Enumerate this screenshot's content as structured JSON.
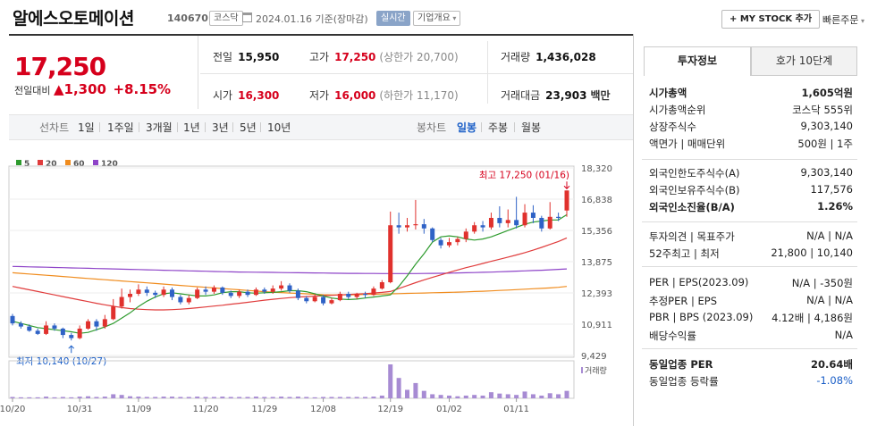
{
  "header": {
    "company_name": "알에스오토메이션",
    "code": "140670",
    "market_badge": "코스닥",
    "date_text": "2024.01.16 기준(장마감)",
    "realtime_badge": "실시간",
    "company_overview": "기업개요",
    "mystock_button": "+ MY STOCK 추가",
    "quick_order": "빠른주문"
  },
  "quote": {
    "price": "17,250",
    "change_label": "전일대비",
    "change_arrow": "▲",
    "change_value": "1,300",
    "change_percent": "+8.15%",
    "prev_close_label": "전일",
    "prev_close": "15,950",
    "high_label": "고가",
    "high": "17,250",
    "upper_limit": "(상한가 20,700)",
    "volume_label": "거래량",
    "volume": "1,436,028",
    "open_label": "시가",
    "open": "16,300",
    "low_label": "저가",
    "low": "16,000",
    "lower_limit": "(하한가 11,170)",
    "amount_label": "거래대금",
    "amount": "23,903",
    "amount_unit": "백만"
  },
  "periods": {
    "label": "선차트",
    "items": [
      "1일",
      "1주일",
      "3개월",
      "1년",
      "3년",
      "5년",
      "10년"
    ],
    "candle_label": "봉차트",
    "candle_items": [
      "일봉",
      "주봉",
      "월봉"
    ],
    "selected": "일봉"
  },
  "chart_data": {
    "type": "candlestick",
    "legend": [
      {
        "name": "5",
        "color": "#2e9b2e"
      },
      {
        "name": "20",
        "color": "#e03c3c"
      },
      {
        "name": "60",
        "color": "#f08c1e"
      },
      {
        "name": "120",
        "color": "#8e44c8"
      }
    ],
    "y_ticks": [
      "18,320",
      "16,838",
      "15,356",
      "13,875",
      "12,393",
      "10,911",
      "9,429"
    ],
    "ylim": [
      9429,
      18320
    ],
    "x_ticks": [
      "10/20",
      "10/31",
      "11/09",
      "11/20",
      "11/29",
      "12/08",
      "12/19",
      "01/02",
      "01/11"
    ],
    "high_annotation": "최고 17,250 (01/16)",
    "low_annotation": "최저 10,140 (10/27)",
    "volume_label": "거래량",
    "candles": [
      {
        "o": 11300,
        "c": 10950,
        "h": 11400,
        "l": 10850
      },
      {
        "o": 10950,
        "c": 10800,
        "h": 11050,
        "l": 10700
      },
      {
        "o": 10800,
        "c": 10600,
        "h": 10900,
        "l": 10550
      },
      {
        "o": 10600,
        "c": 10450,
        "h": 10700,
        "l": 10400
      },
      {
        "o": 10450,
        "c": 10850,
        "h": 11050,
        "l": 10400
      },
      {
        "o": 10850,
        "c": 10700,
        "h": 10950,
        "l": 10600
      },
      {
        "o": 10700,
        "c": 10400,
        "h": 10750,
        "l": 10250
      },
      {
        "o": 10400,
        "c": 10250,
        "h": 10500,
        "l": 10140
      },
      {
        "o": 10250,
        "c": 10700,
        "h": 10850,
        "l": 10200
      },
      {
        "o": 10700,
        "c": 11050,
        "h": 11150,
        "l": 10650
      },
      {
        "o": 11050,
        "c": 10800,
        "h": 11150,
        "l": 10600
      },
      {
        "o": 10800,
        "c": 11150,
        "h": 11350,
        "l": 10700
      },
      {
        "o": 11150,
        "c": 11750,
        "h": 12100,
        "l": 11100
      },
      {
        "o": 11750,
        "c": 12200,
        "h": 12600,
        "l": 11650
      },
      {
        "o": 12200,
        "c": 12350,
        "h": 12550,
        "l": 11950
      },
      {
        "o": 12350,
        "c": 12550,
        "h": 12800,
        "l": 12250
      },
      {
        "o": 12550,
        "c": 12400,
        "h": 12700,
        "l": 12250
      },
      {
        "o": 12400,
        "c": 12300,
        "h": 12500,
        "l": 12150
      },
      {
        "o": 12300,
        "c": 12550,
        "h": 12700,
        "l": 12200
      },
      {
        "o": 12550,
        "c": 12200,
        "h": 12650,
        "l": 12050
      },
      {
        "o": 12200,
        "c": 11950,
        "h": 12300,
        "l": 11850
      },
      {
        "o": 11950,
        "c": 12150,
        "h": 12300,
        "l": 11850
      },
      {
        "o": 12150,
        "c": 12550,
        "h": 12650,
        "l": 12100
      },
      {
        "o": 12550,
        "c": 12450,
        "h": 12700,
        "l": 12300
      },
      {
        "o": 12450,
        "c": 12650,
        "h": 12750,
        "l": 12350
      },
      {
        "o": 12650,
        "c": 12400,
        "h": 12700,
        "l": 12300
      },
      {
        "o": 12400,
        "c": 12250,
        "h": 12500,
        "l": 12150
      },
      {
        "o": 12250,
        "c": 12450,
        "h": 12550,
        "l": 12150
      },
      {
        "o": 12450,
        "c": 12300,
        "h": 12550,
        "l": 12200
      },
      {
        "o": 12300,
        "c": 12550,
        "h": 12650,
        "l": 12250
      },
      {
        "o": 12550,
        "c": 12450,
        "h": 12650,
        "l": 12350
      },
      {
        "o": 12450,
        "c": 12600,
        "h": 12750,
        "l": 12350
      },
      {
        "o": 12600,
        "c": 12750,
        "h": 12950,
        "l": 12500
      },
      {
        "o": 12750,
        "c": 12500,
        "h": 12850,
        "l": 12400
      },
      {
        "o": 12500,
        "c": 12150,
        "h": 12600,
        "l": 12050
      },
      {
        "o": 12150,
        "c": 12000,
        "h": 12250,
        "l": 11900
      },
      {
        "o": 12000,
        "c": 12200,
        "h": 12350,
        "l": 11950
      },
      {
        "o": 12200,
        "c": 11900,
        "h": 12300,
        "l": 11800
      },
      {
        "o": 11900,
        "c": 12050,
        "h": 12150,
        "l": 11850
      },
      {
        "o": 12050,
        "c": 12350,
        "h": 12450,
        "l": 12000
      },
      {
        "o": 12350,
        "c": 12200,
        "h": 12450,
        "l": 12100
      },
      {
        "o": 12200,
        "c": 12350,
        "h": 12400,
        "l": 12100
      },
      {
        "o": 12350,
        "c": 12300,
        "h": 12450,
        "l": 12150
      },
      {
        "o": 12300,
        "c": 12600,
        "h": 12700,
        "l": 12250
      },
      {
        "o": 12600,
        "c": 12900,
        "h": 13000,
        "l": 12550
      },
      {
        "o": 12900,
        "c": 15600,
        "h": 16250,
        "l": 12850
      },
      {
        "o": 15600,
        "c": 15500,
        "h": 16200,
        "l": 15200
      },
      {
        "o": 15500,
        "c": 15600,
        "h": 15950,
        "l": 15300
      },
      {
        "o": 15600,
        "c": 15650,
        "h": 16800,
        "l": 15400
      },
      {
        "o": 15650,
        "c": 15450,
        "h": 15900,
        "l": 15200
      },
      {
        "o": 15450,
        "c": 14900,
        "h": 15500,
        "l": 14800
      },
      {
        "o": 14900,
        "c": 14650,
        "h": 15000,
        "l": 14500
      },
      {
        "o": 14650,
        "c": 14800,
        "h": 15000,
        "l": 14550
      },
      {
        "o": 14800,
        "c": 14950,
        "h": 15050,
        "l": 14650
      },
      {
        "o": 14950,
        "c": 15300,
        "h": 15450,
        "l": 14800
      },
      {
        "o": 15300,
        "c": 15600,
        "h": 15750,
        "l": 15200
      },
      {
        "o": 15600,
        "c": 15500,
        "h": 15800,
        "l": 15300
      },
      {
        "o": 15500,
        "c": 15950,
        "h": 16200,
        "l": 15400
      },
      {
        "o": 15950,
        "c": 15700,
        "h": 16500,
        "l": 15500
      },
      {
        "o": 15700,
        "c": 15850,
        "h": 16350,
        "l": 15500
      },
      {
        "o": 15850,
        "c": 15600,
        "h": 16950,
        "l": 15450
      },
      {
        "o": 15600,
        "c": 16200,
        "h": 16600,
        "l": 15500
      },
      {
        "o": 16200,
        "c": 15950,
        "h": 16550,
        "l": 15700
      },
      {
        "o": 15950,
        "c": 15450,
        "h": 16050,
        "l": 15300
      },
      {
        "o": 15450,
        "c": 16000,
        "h": 16700,
        "l": 15400
      },
      {
        "o": 16000,
        "c": 15950,
        "h": 16200,
        "l": 15800
      },
      {
        "o": 16300,
        "c": 17250,
        "h": 17250,
        "l": 16000
      }
    ],
    "ma5": [
      11050,
      10950,
      10850,
      10750,
      10700,
      10650,
      10600,
      10550,
      10480,
      10520,
      10650,
      10780,
      10950,
      11200,
      11450,
      11750,
      12000,
      12200,
      12350,
      12400,
      12350,
      12300,
      12250,
      12250,
      12300,
      12400,
      12450,
      12450,
      12400,
      12380,
      12400,
      12420,
      12450,
      12500,
      12500,
      12450,
      12350,
      12250,
      12150,
      12100,
      12080,
      12100,
      12150,
      12200,
      12250,
      12300,
      12700,
      13200,
      13750,
      14250,
      14800,
      15050,
      15100,
      15050,
      14950,
      14900,
      14950,
      15050,
      15200,
      15350,
      15500,
      15650,
      15750,
      15800,
      15850,
      15850,
      16100
    ],
    "ma20": [
      12700,
      12620,
      12540,
      12460,
      12380,
      12300,
      12220,
      12140,
      12060,
      11980,
      11900,
      11830,
      11760,
      11700,
      11650,
      11620,
      11600,
      11590,
      11590,
      11600,
      11620,
      11650,
      11690,
      11730,
      11770,
      11810,
      11860,
      11900,
      11950,
      12000,
      12050,
      12090,
      12130,
      12170,
      12200,
      12220,
      12240,
      12260,
      12280,
      12300,
      12320,
      12340,
      12360,
      12390,
      12420,
      12460,
      12600,
      12740,
      12880,
      13010,
      13130,
      13250,
      13370,
      13480,
      13590,
      13690,
      13790,
      13890,
      13990,
      14090,
      14190,
      14300,
      14420,
      14550,
      14690,
      14830,
      15000
    ],
    "ma60": [
      13350,
      13320,
      13290,
      13260,
      13230,
      13200,
      13170,
      13140,
      13110,
      13080,
      13050,
      13020,
      12990,
      12960,
      12930,
      12900,
      12870,
      12840,
      12810,
      12780,
      12750,
      12720,
      12690,
      12660,
      12630,
      12600,
      12570,
      12540,
      12510,
      12480,
      12450,
      12430,
      12410,
      12390,
      12370,
      12350,
      12330,
      12310,
      12300,
      12300,
      12300,
      12310,
      12320,
      12330,
      12340,
      12350,
      12360,
      12370,
      12380,
      12390,
      12400,
      12410,
      12420,
      12430,
      12445,
      12460,
      12475,
      12490,
      12510,
      12530,
      12550,
      12570,
      12590,
      12610,
      12630,
      12660,
      12700
    ],
    "ma120": [
      13650,
      13640,
      13630,
      13620,
      13610,
      13600,
      13590,
      13580,
      13570,
      13560,
      13550,
      13540,
      13530,
      13520,
      13510,
      13500,
      13490,
      13480,
      13470,
      13460,
      13450,
      13440,
      13430,
      13420,
      13410,
      13400,
      13390,
      13385,
      13380,
      13375,
      13370,
      13365,
      13360,
      13355,
      13350,
      13345,
      13340,
      13335,
      13330,
      13325,
      13320,
      13318,
      13316,
      13314,
      13312,
      13310,
      13310,
      13310,
      13312,
      13315,
      13320,
      13325,
      13330,
      13340,
      13350,
      13360,
      13370,
      13380,
      13395,
      13410,
      13425,
      13440,
      13455,
      13470,
      13490,
      13510,
      13530
    ],
    "volume": [
      0.04,
      0.03,
      0.03,
      0.03,
      0.05,
      0.03,
      0.04,
      0.03,
      0.05,
      0.06,
      0.04,
      0.05,
      0.12,
      0.1,
      0.06,
      0.05,
      0.04,
      0.04,
      0.05,
      0.05,
      0.04,
      0.04,
      0.05,
      0.04,
      0.04,
      0.05,
      0.04,
      0.04,
      0.04,
      0.05,
      0.04,
      0.04,
      0.05,
      0.04,
      0.05,
      0.04,
      0.03,
      0.04,
      0.04,
      0.04,
      0.04,
      0.04,
      0.04,
      0.05,
      0.08,
      1.0,
      0.6,
      0.25,
      0.45,
      0.22,
      0.12,
      0.1,
      0.08,
      0.06,
      0.08,
      0.1,
      0.08,
      0.18,
      0.14,
      0.12,
      0.1,
      0.2,
      0.12,
      0.08,
      0.15,
      0.12,
      0.22
    ]
  },
  "sidebar": {
    "tab_info": "투자정보",
    "tab_orderbook": "호가 10단계",
    "rows1": [
      {
        "label": "시가총액",
        "value": "1,605억원",
        "bold": true
      },
      {
        "label": "시가총액순위",
        "value": "코스닥 555위"
      },
      {
        "label": "상장주식수",
        "value": "9,303,140"
      },
      {
        "label": "액면가 | 매매단위",
        "value": "500원 | 1주"
      }
    ],
    "rows2": [
      {
        "label": "외국인한도주식수(A)",
        "value": "9,303,140"
      },
      {
        "label": "외국인보유주식수(B)",
        "value": "117,576"
      },
      {
        "label": "외국인소진율(B/A)",
        "value": "1.26%",
        "bold": true
      }
    ],
    "rows3": [
      {
        "label": "투자의견 | 목표주가",
        "value": "N/A | N/A"
      },
      {
        "label": "52주최고 | 최저",
        "value": "21,800 | 10,140"
      }
    ],
    "rows4": [
      {
        "label": "PER | EPS(2023.09)",
        "value": "N/A | -350원"
      },
      {
        "label": "추정PER | EPS",
        "value": "N/A | N/A"
      },
      {
        "label": "PBR | BPS (2023.09)",
        "value": "4.12배 | 4,186원"
      },
      {
        "label": "배당수익률",
        "value": "N/A"
      }
    ],
    "rows5": [
      {
        "label": "동일업종 PER",
        "value": "20.64배",
        "bold": true
      },
      {
        "label": "동일업종 등락률",
        "value": "-1.08%"
      }
    ]
  }
}
